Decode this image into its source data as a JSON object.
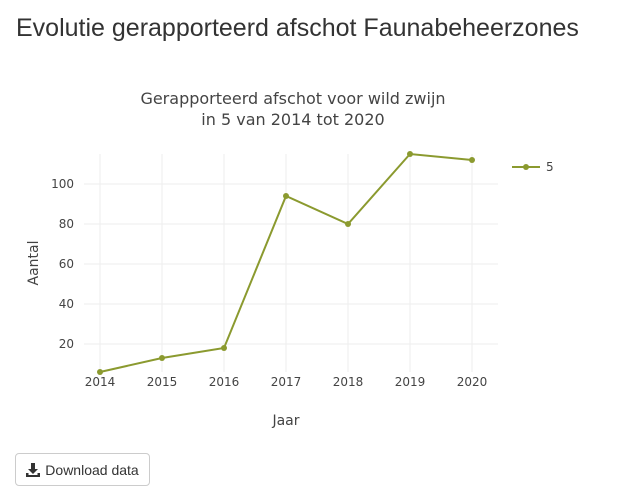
{
  "page": {
    "title": "Evolutie gerapporteerd afschot Faunabeheerzones"
  },
  "download": {
    "label": "Download data",
    "icon": "download-icon"
  },
  "chart_data": {
    "type": "line",
    "title_lines": [
      "Gerapporteerd afschot voor wild zwijn",
      "in 5 van 2014 tot 2020"
    ],
    "xlabel": "Jaar",
    "ylabel": "Aantal",
    "x": [
      2014,
      2015,
      2016,
      2017,
      2018,
      2019,
      2020
    ],
    "series": [
      {
        "name": "5",
        "values": [
          6,
          13,
          18,
          94,
          80,
          115,
          112
        ],
        "color": "#8b9a2f"
      }
    ],
    "yticks": [
      20,
      40,
      60,
      80,
      100
    ],
    "ylim": [
      6,
      115
    ],
    "grid": true,
    "legend": "top-right"
  }
}
